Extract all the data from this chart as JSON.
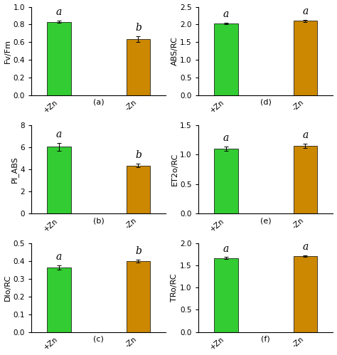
{
  "subplots": [
    {
      "label": "(a)",
      "ylabel": "Fv/Fm",
      "categories": [
        "+Zn",
        "-Zn"
      ],
      "values": [
        0.83,
        0.635
      ],
      "errors": [
        0.01,
        0.03
      ],
      "sig_labels": [
        "a",
        "b"
      ],
      "colors": [
        "#33cc33",
        "#cc8800"
      ],
      "ylim": [
        0,
        1.0
      ],
      "yticks": [
        0.0,
        0.2,
        0.4,
        0.6,
        0.8,
        1.0
      ]
    },
    {
      "label": "(d)",
      "ylabel": "ABS/RC",
      "categories": [
        "+Zn",
        "-Zn"
      ],
      "values": [
        2.03,
        2.1
      ],
      "errors": [
        0.02,
        0.03
      ],
      "sig_labels": [
        "a",
        "a"
      ],
      "colors": [
        "#33cc33",
        "#cc8800"
      ],
      "ylim": [
        0,
        2.5
      ],
      "yticks": [
        0.0,
        0.5,
        1.0,
        1.5,
        2.0,
        2.5
      ]
    },
    {
      "label": "(b)",
      "ylabel": "PI_ABS",
      "categories": [
        "+Zn",
        "-Zn"
      ],
      "values": [
        6.05,
        4.35
      ],
      "errors": [
        0.35,
        0.15
      ],
      "sig_labels": [
        "a",
        "b"
      ],
      "colors": [
        "#33cc33",
        "#cc8800"
      ],
      "ylim": [
        0,
        8
      ],
      "yticks": [
        0,
        2,
        4,
        6,
        8
      ]
    },
    {
      "label": "(e)",
      "ylabel": "ET2o/RC",
      "categories": [
        "+Zn",
        "-Zn"
      ],
      "values": [
        1.1,
        1.15
      ],
      "errors": [
        0.04,
        0.04
      ],
      "sig_labels": [
        "a",
        "a"
      ],
      "colors": [
        "#33cc33",
        "#cc8800"
      ],
      "ylim": [
        0,
        1.5
      ],
      "yticks": [
        0.0,
        0.5,
        1.0,
        1.5
      ]
    },
    {
      "label": "(c)",
      "ylabel": "DIo/RC",
      "categories": [
        "+Zn",
        "-Zn"
      ],
      "values": [
        0.365,
        0.4
      ],
      "errors": [
        0.012,
        0.008
      ],
      "sig_labels": [
        "a",
        "b"
      ],
      "colors": [
        "#33cc33",
        "#cc8800"
      ],
      "ylim": [
        0,
        0.5
      ],
      "yticks": [
        0.0,
        0.1,
        0.2,
        0.3,
        0.4,
        0.5
      ]
    },
    {
      "label": "(f)",
      "ylabel": "TRo/RC",
      "categories": [
        "+Zn",
        "-Zn"
      ],
      "values": [
        1.67,
        1.71
      ],
      "errors": [
        0.02,
        0.02
      ],
      "sig_labels": [
        "a",
        "a"
      ],
      "colors": [
        "#33cc33",
        "#cc8800"
      ],
      "ylim": [
        0,
        2.0
      ],
      "yticks": [
        0.0,
        0.5,
        1.0,
        1.5,
        2.0
      ]
    }
  ],
  "background_color": "#ffffff",
  "bar_width": 0.6,
  "sig_fontsize": 10,
  "label_fontsize": 8,
  "ylabel_fontsize": 8,
  "tick_fontsize": 7.5
}
